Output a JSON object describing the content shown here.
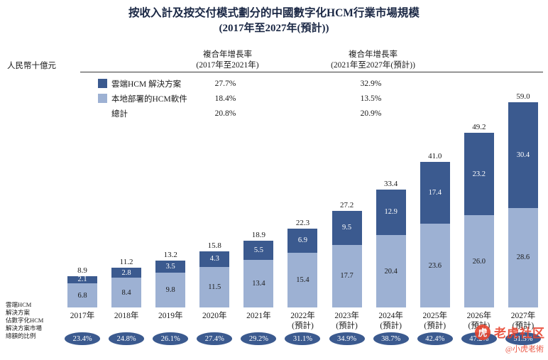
{
  "title": "按收入計及按交付模式劃分的中國數字化HCM行業市場規模",
  "subtitle": "(2017年至2027年(預計))",
  "y_axis_unit": "人民幣十億元",
  "chart_data": {
    "type": "bar",
    "stacked": true,
    "title": "按收入計及按交付模式劃分的中國數字化HCM行業市場規模 (2017年至2027年(預計))",
    "ylabel": "人民幣十億元",
    "ylim": [
      0,
      60
    ],
    "grid": false,
    "categories": [
      "2017年",
      "2018年",
      "2019年",
      "2020年",
      "2021年",
      "2022年\n(預計)",
      "2023年\n(預計)",
      "2024年\n(預計)",
      "2025年\n(預計)",
      "2026年\n(預計)",
      "2027年\n(預計)"
    ],
    "series": [
      {
        "name": "雲端HCM 解決方案",
        "color": "#3b5a8f",
        "values": [
          2.1,
          2.8,
          3.5,
          4.3,
          5.5,
          6.9,
          9.5,
          12.9,
          17.4,
          23.2,
          30.4
        ]
      },
      {
        "name": "本地部署的HCM軟件",
        "color": "#9db1d3",
        "values": [
          6.8,
          8.4,
          9.8,
          11.5,
          13.4,
          15.4,
          17.7,
          20.4,
          23.6,
          26.0,
          28.6
        ]
      }
    ],
    "totals": [
      8.9,
      11.2,
      13.2,
      15.8,
      18.9,
      22.3,
      27.2,
      33.4,
      41.0,
      49.2,
      59.0
    ],
    "cloud_share_percent": [
      "23.4%",
      "24.8%",
      "26.1%",
      "27.4%",
      "29.2%",
      "31.1%",
      "34.9%",
      "38.7%",
      "42.4%",
      "47.2%",
      "51.5%"
    ],
    "cagr": {
      "period1_header": "複合年增長率\n(2017年至2021年)",
      "period2_header": "複合年增長率\n(2021年至2027年(預計))",
      "rows": [
        {
          "label": "雲端HCM 解決方案",
          "p1": "27.7%",
          "p2": "32.9%"
        },
        {
          "label": "本地部署的HCM軟件",
          "p1": "18.4%",
          "p2": "13.5%"
        },
        {
          "label": "總計",
          "p1": "20.8%",
          "p2": "20.9%"
        }
      ]
    },
    "share_axis_label": "雲端HCM\n解決方案\n佔數字化HCM\n解決方案市場\n總額的比例"
  },
  "colors": {
    "cloud": "#3b5a8f",
    "onprem": "#9db1d3",
    "watermark": "#e8432e"
  },
  "watermark": {
    "logo_char": "虎",
    "community": "老虎社区",
    "handle": "@小虎老術"
  }
}
